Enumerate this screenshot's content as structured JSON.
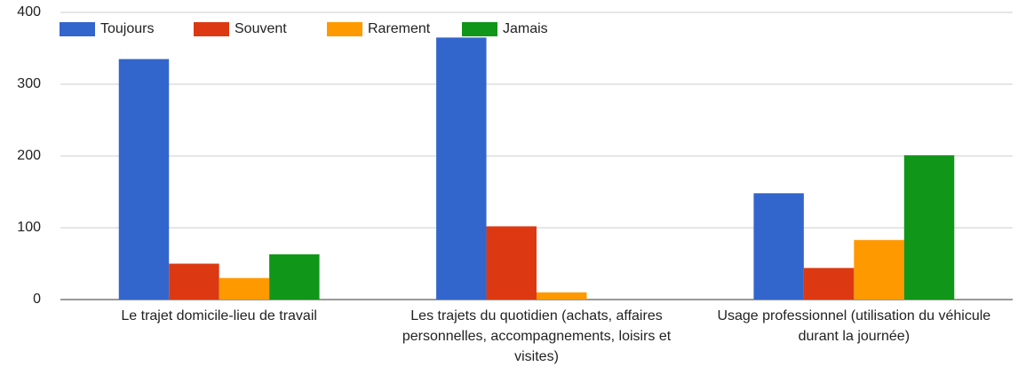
{
  "chart_data": {
    "type": "bar",
    "categories": [
      "Le trajet domicile-lieu de travail",
      "Les trajets du quotidien (achats, affaires personnelles, accompagnements, loisirs et visites)",
      "Usage professionnel (utilisation du véhicule durant la journée)"
    ],
    "series": [
      {
        "name": "Toujours",
        "color": "#3366cc",
        "values": [
          335,
          365,
          148
        ]
      },
      {
        "name": "Souvent",
        "color": "#dc3912",
        "values": [
          50,
          102,
          44
        ]
      },
      {
        "name": "Rarement",
        "color": "#ff9900",
        "values": [
          30,
          10,
          83
        ]
      },
      {
        "name": "Jamais",
        "color": "#109618",
        "values": [
          63,
          0,
          201
        ]
      }
    ],
    "ylim": [
      0,
      400
    ],
    "yticks": [
      0,
      100,
      200,
      300,
      400
    ],
    "grid": true,
    "legend": "top-left"
  }
}
